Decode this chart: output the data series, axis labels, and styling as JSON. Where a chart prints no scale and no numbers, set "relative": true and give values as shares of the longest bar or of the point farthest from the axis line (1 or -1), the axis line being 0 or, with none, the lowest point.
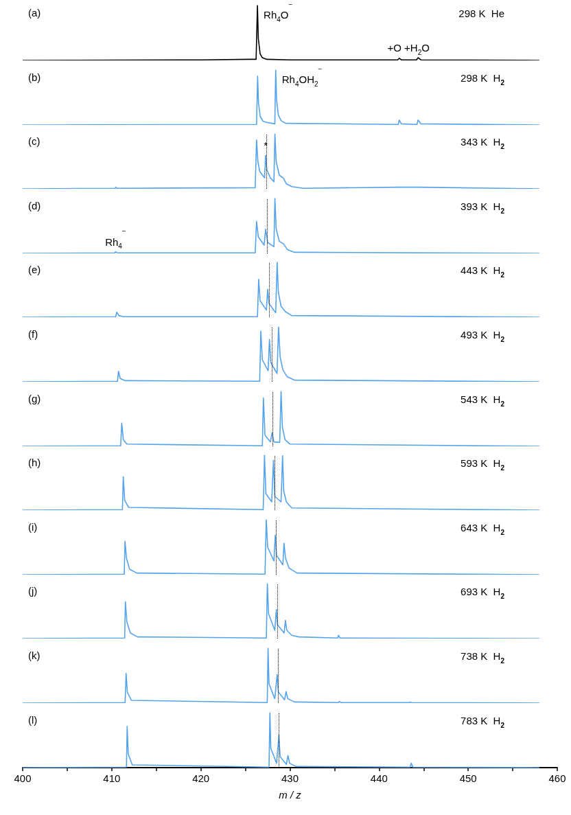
{
  "chart_data": [
    {
      "type": "line",
      "title": "(a)",
      "subtitle": "298 K  He",
      "relative": true,
      "marker": "none",
      "xlim": [
        400,
        460
      ],
      "tick_labels": false,
      "annotations": [
        {
          "text": "Rh$_{4}$O$^{−}$",
          "x": 426.35,
          "y": 1
        },
        {
          "text": "+O +H$_{2}$O",
          "x": 443.3,
          "y": 0.05
        }
      ],
      "series": [
        {
          "color": "#000000",
          "x": [
            400,
            420,
            425.5,
            426.2,
            426.35,
            426.45,
            426.65,
            426.9,
            427.4,
            430,
            442.1,
            442.27,
            442.5,
            444.2,
            444.38,
            444.7,
            458
          ],
          "values": [
            0,
            0.01,
            0.02,
            0.02,
            1,
            0.4,
            0.12,
            0.05,
            0.02,
            0.01,
            0.01,
            0.04,
            0.01,
            0.01,
            0.05,
            0.01,
            0
          ]
        }
      ]
    },
    {
      "type": "line",
      "title": "(b)",
      "subtitle": "298 K  H$_{2}$",
      "relative": true,
      "marker": "none",
      "xlim": [
        400,
        460
      ],
      "tick_labels": false,
      "annotations": [
        {
          "text": "Rh$_{4}$OH$_{2}$$^{−}$",
          "x": 428.4,
          "y": 1
        }
      ],
      "series": [
        {
          "color": "#55a3ec",
          "x": [
            400,
            426.25,
            426.37,
            426.47,
            426.67,
            426.97,
            427.3,
            428.3,
            428.4,
            428.5,
            428.7,
            429.0,
            429.5,
            442.15,
            442.27,
            442.5,
            444.25,
            444.38,
            444.7,
            458
          ],
          "values": [
            0,
            0.01,
            0.89,
            0.4,
            0.15,
            0.07,
            0.05,
            0.02,
            1,
            0.45,
            0.18,
            0.08,
            0.03,
            0.01,
            0.09,
            0.02,
            0.01,
            0.09,
            0.02,
            0
          ]
        }
      ]
    },
    {
      "type": "line",
      "title": "(c)",
      "subtitle": "343 K  H$_{2}$",
      "relative": true,
      "marker": "none",
      "xlim": [
        400,
        460
      ],
      "tick_labels": false,
      "annotations": [
        {
          "text": "*",
          "x": 427.27,
          "y": 0.61
        }
      ],
      "ref_lines": [
        {
          "axis": "x",
          "value": 427.34,
          "color": "#000000",
          "line_style": "dotted"
        }
      ],
      "series": [
        {
          "color": "#55a3ec",
          "x": [
            400,
            410.4,
            410.45,
            410.6,
            426.1,
            426.25,
            426.4,
            426.6,
            427.15,
            427.27,
            427.4,
            427.8,
            428.2,
            428.31,
            428.45,
            428.8,
            429.29,
            429.6,
            430.2,
            431.5,
            442.3,
            444.4,
            458
          ],
          "values": [
            0,
            0.01,
            0.03,
            0.01,
            0.02,
            0.89,
            0.5,
            0.32,
            0.2,
            0.61,
            0.35,
            0.2,
            0.13,
            1,
            0.5,
            0.25,
            0.19,
            0.09,
            0.04,
            0.01,
            0.03,
            0.03,
            0
          ]
        }
      ]
    },
    {
      "type": "line",
      "title": "(d)",
      "subtitle": "393 K  H$_{2}$",
      "relative": true,
      "marker": "none",
      "xlim": [
        400,
        460
      ],
      "tick_labels": false,
      "annotations": [
        {
          "text": "Rh$_{4}$$^{−}$",
          "x": 410.43,
          "y": 0.03
        }
      ],
      "ref_lines": [
        {
          "axis": "x",
          "value": 427.46,
          "color": "#000000",
          "line_style": "dotted"
        }
      ],
      "series": [
        {
          "color": "#55a3ec",
          "x": [
            400,
            410.35,
            410.43,
            410.6,
            426.1,
            426.25,
            426.45,
            427.1,
            427.27,
            427.5,
            428.2,
            428.31,
            428.45,
            428.8,
            429.29,
            429.7,
            430.5,
            458
          ],
          "values": [
            0,
            0.01,
            0.03,
            0.01,
            0.01,
            0.58,
            0.3,
            0.15,
            0.44,
            0.2,
            0.12,
            1,
            0.45,
            0.22,
            0.17,
            0.07,
            0.02,
            0
          ]
        }
      ]
    },
    {
      "type": "line",
      "title": "(e)",
      "subtitle": "443 K  H$_{2}$",
      "relative": true,
      "marker": "none",
      "xlim": [
        400,
        460
      ],
      "tick_labels": false,
      "ref_lines": [
        {
          "axis": "x",
          "value": 427.66,
          "color": "#000000",
          "line_style": "dotted"
        }
      ],
      "series": [
        {
          "color": "#55a3ec",
          "x": [
            400,
            410.45,
            410.55,
            410.8,
            411.3,
            426.35,
            426.49,
            426.65,
            427.35,
            427.5,
            427.65,
            428.4,
            428.56,
            428.7,
            429.0,
            429.5,
            430.2,
            458
          ],
          "values": [
            0,
            0.01,
            0.09,
            0.03,
            0.01,
            0.01,
            0.69,
            0.3,
            0.13,
            0.51,
            0.25,
            0.08,
            1,
            0.45,
            0.2,
            0.1,
            0.03,
            0
          ]
        }
      ]
    },
    {
      "type": "line",
      "title": "(f)",
      "subtitle": "493 K  H$_{2}$",
      "relative": true,
      "marker": "none",
      "xlim": [
        400,
        460
      ],
      "tick_labels": false,
      "ref_lines": [
        {
          "axis": "x",
          "value": 427.95,
          "color": "#000000",
          "line_style": "dotted"
        }
      ],
      "series": [
        {
          "color": "#55a3ec",
          "x": [
            400,
            410.65,
            410.76,
            410.95,
            411.5,
            426.6,
            426.73,
            426.9,
            427.55,
            427.7,
            427.85,
            428.55,
            428.72,
            428.9,
            429.2,
            429.7,
            430.5,
            458
          ],
          "values": [
            0,
            0.01,
            0.19,
            0.06,
            0.02,
            0.01,
            0.92,
            0.4,
            0.2,
            0.77,
            0.35,
            0.15,
            1,
            0.45,
            0.22,
            0.09,
            0.03,
            0
          ]
        }
      ]
    },
    {
      "type": "line",
      "title": "(g)",
      "subtitle": "543 K  H$_{2}$",
      "relative": true,
      "marker": "none",
      "xlim": [
        400,
        460
      ],
      "tick_labels": false,
      "ref_lines": [
        {
          "axis": "x",
          "value": 428.07,
          "color": "#000000",
          "line_style": "dotted"
        }
      ],
      "series": [
        {
          "color": "#55a3ec",
          "x": [
            400,
            411.0,
            411.12,
            411.3,
            411.7,
            426.9,
            427.02,
            427.2,
            427.8,
            428.0,
            428.2,
            428.85,
            429.0,
            429.15,
            429.45,
            430,
            458
          ],
          "values": [
            0,
            0.01,
            0.42,
            0.12,
            0.04,
            0.01,
            0.88,
            0.2,
            0.08,
            0.25,
            0.08,
            0.07,
            1,
            0.35,
            0.12,
            0.04,
            0
          ]
        }
      ]
    },
    {
      "type": "line",
      "title": "(h)",
      "subtitle": "593 K  H$_{2}$",
      "relative": true,
      "marker": "none",
      "xlim": [
        400,
        460
      ],
      "tick_labels": false,
      "ref_lines": [
        {
          "axis": "x",
          "value": 428.27,
          "color": "#000000",
          "line_style": "dotted"
        }
      ],
      "series": [
        {
          "color": "#55a3ec",
          "x": [
            400,
            411.2,
            411.29,
            411.45,
            411.9,
            427.0,
            427.14,
            427.3,
            427.95,
            428.15,
            428.3,
            429.0,
            429.17,
            429.3,
            429.6,
            430.2,
            458
          ],
          "values": [
            0,
            0.01,
            0.61,
            0.18,
            0.05,
            0.01,
            1,
            0.3,
            0.15,
            0.91,
            0.25,
            0.15,
            0.99,
            0.35,
            0.15,
            0.04,
            0
          ]
        }
      ]
    },
    {
      "type": "line",
      "title": "(i)",
      "subtitle": "643 K  H$_{2}$",
      "relative": true,
      "marker": "none",
      "xlim": [
        400,
        460
      ],
      "tick_labels": false,
      "ref_lines": [
        {
          "axis": "x",
          "value": 428.47,
          "color": "#000000",
          "line_style": "dotted"
        }
      ],
      "series": [
        {
          "color": "#55a3ec",
          "x": [
            400,
            411.4,
            411.49,
            411.65,
            412.0,
            412.8,
            427.2,
            427.34,
            427.5,
            428.2,
            428.35,
            428.5,
            429.2,
            429.33,
            429.5,
            429.9,
            430.8,
            458
          ],
          "values": [
            0,
            0.01,
            0.61,
            0.3,
            0.1,
            0.03,
            0.01,
            1,
            0.5,
            0.25,
            0.72,
            0.35,
            0.18,
            0.57,
            0.3,
            0.12,
            0.03,
            0
          ]
        }
      ]
    },
    {
      "type": "line",
      "title": "(j)",
      "subtitle": "693 K  H$_{2}$",
      "relative": true,
      "marker": "none",
      "xlim": [
        400,
        460
      ],
      "tick_labels": false,
      "ref_lines": [
        {
          "axis": "x",
          "value": 428.6,
          "color": "#000000",
          "line_style": "dotted"
        }
      ],
      "series": [
        {
          "color": "#55a3ec",
          "x": [
            400,
            411.45,
            411.53,
            411.7,
            412.1,
            412.9,
            427.35,
            427.46,
            427.6,
            428.3,
            428.47,
            428.6,
            429.35,
            429.49,
            429.65,
            430.2,
            431,
            435.35,
            435.45,
            435.6,
            458
          ],
          "values": [
            0,
            0.01,
            0.67,
            0.3,
            0.1,
            0.03,
            0.01,
            1,
            0.45,
            0.15,
            0.53,
            0.25,
            0.1,
            0.33,
            0.15,
            0.06,
            0.03,
            0.01,
            0.06,
            0.01,
            0
          ]
        }
      ]
    },
    {
      "type": "line",
      "title": "(k)",
      "subtitle": "738 K  H$_{2}$",
      "relative": true,
      "marker": "none",
      "xlim": [
        400,
        460
      ],
      "tick_labels": false,
      "ref_lines": [
        {
          "axis": "x",
          "value": 428.68,
          "color": "#000000",
          "line_style": "dotted"
        }
      ],
      "series": [
        {
          "color": "#55a3ec",
          "x": [
            400,
            411.5,
            411.61,
            411.75,
            412.2,
            427.45,
            427.54,
            427.65,
            428.3,
            428.56,
            428.7,
            429.4,
            429.57,
            429.75,
            430.5,
            435.45,
            435.55,
            435.7,
            443.4,
            443.5,
            443.6,
            458
          ],
          "values": [
            0,
            0.01,
            0.54,
            0.2,
            0.05,
            0.01,
            1,
            0.35,
            0.08,
            0.52,
            0.2,
            0.06,
            0.21,
            0.08,
            0.02,
            0.01,
            0.03,
            0.01,
            0.01,
            0.02,
            0.01,
            0
          ]
        }
      ]
    },
    {
      "type": "line",
      "title": "(l)",
      "subtitle": "783 K  H$_{2}$",
      "relative": true,
      "marker": "none",
      "xlim": [
        400,
        460
      ],
      "tick_labels": "x",
      "xlabel": "m / z",
      "xticks": [
        400,
        {
          "value": 405,
          "label": null
        },
        410,
        {
          "value": 415,
          "label": null
        },
        420,
        {
          "value": 425,
          "label": null
        },
        430,
        {
          "value": 435,
          "label": null
        },
        440,
        {
          "value": 445,
          "label": null
        },
        450,
        {
          "value": 455,
          "label": null
        },
        460
      ],
      "ref_lines": [
        {
          "axis": "x",
          "value": 428.76,
          "color": "#000000",
          "line_style": "dotted"
        }
      ],
      "series": [
        {
          "color": "#55a3ec",
          "x": [
            400,
            411.65,
            411.73,
            411.85,
            412.3,
            427.65,
            427.75,
            427.85,
            428.5,
            428.76,
            428.9,
            429.6,
            429.78,
            429.95,
            430.7,
            443.5,
            443.6,
            443.8,
            458
          ],
          "values": [
            0,
            0.01,
            0.75,
            0.25,
            0.05,
            0.01,
            1,
            0.35,
            0.08,
            0.59,
            0.2,
            0.06,
            0.22,
            0.08,
            0.02,
            0.01,
            0.08,
            0.01,
            0
          ]
        }
      ]
    }
  ]
}
